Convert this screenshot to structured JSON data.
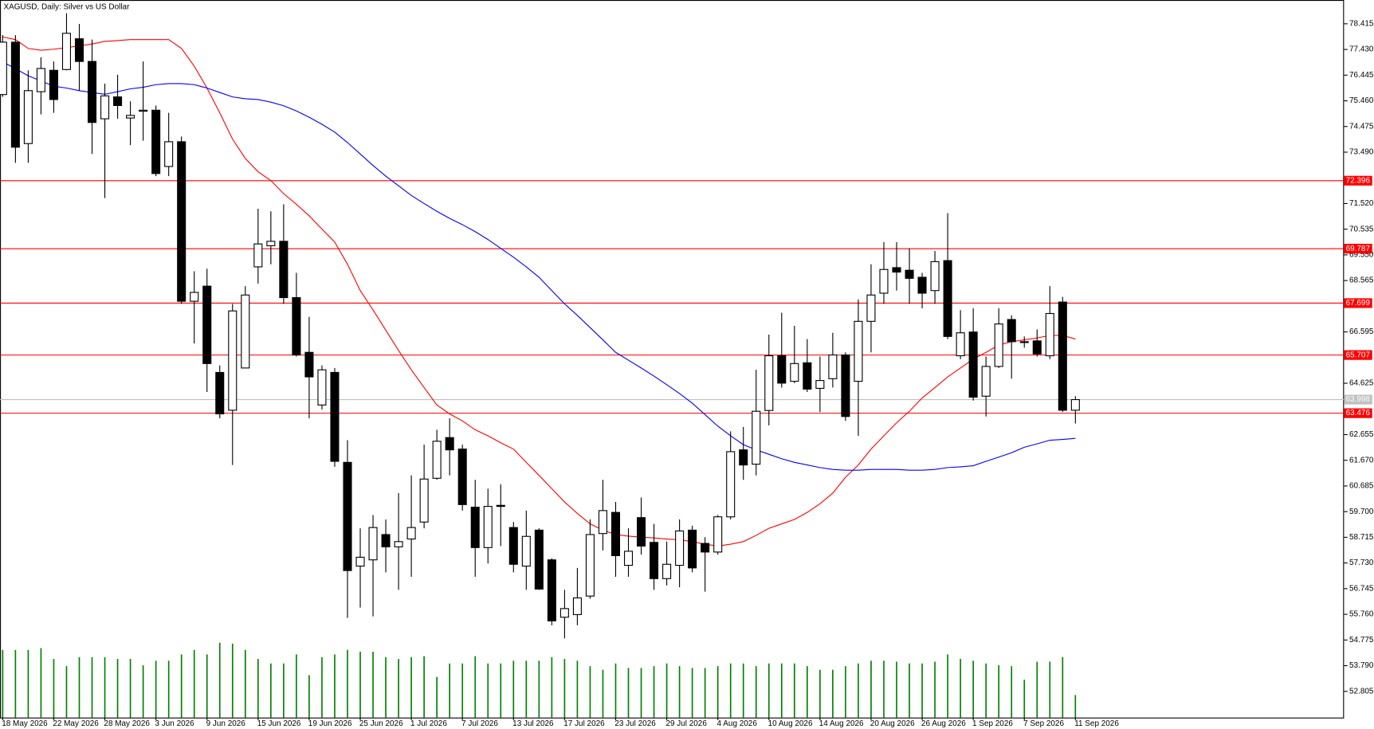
{
  "chart_data": {
    "type": "candlestick",
    "title": "XAGUSD, Daily:  Silver vs US Dollar",
    "categories": [
      "18 May 2026",
      null,
      null,
      null,
      "22 May 2026",
      null,
      null,
      null,
      "28 May 2026",
      null,
      null,
      null,
      "3 Jun 2026",
      null,
      null,
      null,
      "9 Jun 2026",
      null,
      null,
      null,
      "15 Jun 2026",
      null,
      null,
      null,
      "19 Jun 2026",
      null,
      null,
      null,
      "25 Jun 2026",
      null,
      null,
      null,
      "1 Jul 2026",
      null,
      null,
      null,
      "7 Jul 2026",
      null,
      null,
      null,
      "13 Jul 2026",
      null,
      null,
      null,
      "17 Jul 2026",
      null,
      null,
      null,
      "23 Jul 2026",
      null,
      null,
      null,
      "29 Jul 2026",
      null,
      null,
      null,
      "4 Aug 2026",
      null,
      null,
      null,
      "10 Aug 2026",
      null,
      null,
      null,
      "14 Aug 2026",
      null,
      null,
      null,
      "20 Aug 2026",
      null,
      null,
      null,
      "26 Aug 2026",
      null,
      null,
      null,
      "1 Sep 2026",
      null,
      null,
      null,
      "7 Sep 2026",
      null,
      null,
      null,
      "11 Sep 2026"
    ],
    "open": [
      75.7,
      77.71,
      73.82,
      75.81,
      76.63,
      76.66,
      77.84,
      76.97,
      74.77,
      75.61,
      74.8,
      75.06,
      75.1,
      72.94,
      73.89,
      67.77,
      68.35,
      65.04,
      63.59,
      65.21,
      69.09,
      69.9,
      70.07,
      67.91,
      65.81,
      63.79,
      65.04,
      61.59,
      57.61,
      57.85,
      58.82,
      58.35,
      58.65,
      59.3,
      60.98,
      62.54,
      62.1,
      59.87,
      58.32,
      59.94,
      59.09,
      57.61,
      58.99,
      57.85,
      55.65,
      55.75,
      56.46,
      58.86,
      59.67,
      57.64,
      59.47,
      58.52,
      57.13,
      57.64,
      58.99,
      58.48,
      58.15,
      59.5,
      62.07,
      61.52,
      63.58,
      65.68,
      64.7,
      65.41,
      64.43,
      64.8,
      65.71,
      64.7,
      67.0,
      68.08,
      69.06,
      68.96,
      68.69,
      68.18,
      69.33,
      65.68,
      66.59,
      64.13,
      65.27,
      67.07,
      66.22,
      66.25,
      65.68,
      67.74,
      63.59
    ],
    "high": [
      77.98,
      77.98,
      76.63,
      77.13,
      76.97,
      78.82,
      78.41,
      77.81,
      76.12,
      76.46,
      75.44,
      76.97,
      75.28,
      75.0,
      74.09,
      68.92,
      69.02,
      65.31,
      67.67,
      68.35,
      71.32,
      71.22,
      71.49,
      68.86,
      67.17,
      65.31,
      65.21,
      62.44,
      59.06,
      59.57,
      59.4,
      60.41,
      61.09,
      62.27,
      62.84,
      63.28,
      62.27,
      60.92,
      60.58,
      60.75,
      59.3,
      59.74,
      59.06,
      57.91,
      56.7,
      57.54,
      59.4,
      60.92,
      60.07,
      59.06,
      60.24,
      59.23,
      58.55,
      59.4,
      59.16,
      58.72,
      59.57,
      62.78,
      62.95,
      65.14,
      66.49,
      67.33,
      66.83,
      66.32,
      65.65,
      66.56,
      65.81,
      67.84,
      69.19,
      70.04,
      70.04,
      69.8,
      68.86,
      69.7,
      71.15,
      67.43,
      67.5,
      65.65,
      67.5,
      67.23,
      66.42,
      66.69,
      68.35,
      67.94,
      64.13
    ],
    "low": [
      75.61,
      73.08,
      73.08,
      74.94,
      75.0,
      76.63,
      75.85,
      73.42,
      71.73,
      74.77,
      73.76,
      73.93,
      72.57,
      72.57,
      67.67,
      66.15,
      64.29,
      63.28,
      61.49,
      65.21,
      68.45,
      69.19,
      67.67,
      65.65,
      63.28,
      63.62,
      61.42,
      55.62,
      56.02,
      55.68,
      57.37,
      56.7,
      57.2,
      59.06,
      60.92,
      61.09,
      59.74,
      57.2,
      57.71,
      58.38,
      57.37,
      56.7,
      56.7,
      55.34,
      54.84,
      55.34,
      56.36,
      58.21,
      57.2,
      57.2,
      58.05,
      56.7,
      56.87,
      56.8,
      57.37,
      56.63,
      58.05,
      59.4,
      60.92,
      61.09,
      63.01,
      64.46,
      64.63,
      64.29,
      63.52,
      64.46,
      63.18,
      62.61,
      65.81,
      67.67,
      68.18,
      67.67,
      67.5,
      67.67,
      66.32,
      65.55,
      63.96,
      63.35,
      65.21,
      64.8,
      65.99,
      65.65,
      65.55,
      63.52,
      63.08
    ],
    "close": [
      77.71,
      73.68,
      75.85,
      76.7,
      75.51,
      78.05,
      76.97,
      74.63,
      75.65,
      75.28,
      74.9,
      75.1,
      72.67,
      73.89,
      67.77,
      68.11,
      65.38,
      63.45,
      67.4,
      68.01,
      69.97,
      70.07,
      67.91,
      65.71,
      64.87,
      65.14,
      61.63,
      57.44,
      57.95,
      59.09,
      58.35,
      58.55,
      59.09,
      60.95,
      62.4,
      62.07,
      59.97,
      58.32,
      59.9,
      59.9,
      57.68,
      58.75,
      56.73,
      55.51,
      55.98,
      56.39,
      58.82,
      59.74,
      58.01,
      58.18,
      58.38,
      57.13,
      57.68,
      58.96,
      57.54,
      58.15,
      59.5,
      62.0,
      61.49,
      63.55,
      65.68,
      64.63,
      65.38,
      64.4,
      64.73,
      65.71,
      63.35,
      67.0,
      68.01,
      68.99,
      68.89,
      68.65,
      68.08,
      69.29,
      66.42,
      66.56,
      64.09,
      65.27,
      66.9,
      66.22,
      66.19,
      65.75,
      67.3,
      63.59,
      63.998
    ],
    "volume": [
      75,
      75,
      75,
      77,
      65,
      57,
      67,
      67,
      67,
      65,
      65,
      58,
      63,
      63,
      70,
      75,
      70,
      83,
      82,
      75,
      65,
      60,
      60,
      70,
      47,
      67,
      70,
      75,
      73,
      73,
      67,
      65,
      67,
      68,
      45,
      60,
      60,
      68,
      60,
      60,
      63,
      63,
      63,
      67,
      65,
      63,
      57,
      53,
      60,
      55,
      55,
      57,
      60,
      57,
      55,
      55,
      57,
      60,
      60,
      57,
      60,
      60,
      60,
      57,
      53,
      53,
      57,
      60,
      63,
      63,
      62,
      60,
      60,
      62,
      70,
      65,
      63,
      60,
      58,
      57,
      42,
      62,
      62,
      67,
      25
    ],
    "volume_color": "#008000",
    "ma_lines": [
      {
        "color": "#ff0000",
        "values": [
          77.91,
          77.81,
          77.47,
          77.4,
          77.44,
          77.5,
          77.57,
          77.64,
          77.74,
          77.77,
          77.81,
          77.81,
          77.81,
          77.81,
          77.47,
          76.79,
          75.95,
          75.0,
          73.99,
          73.25,
          72.74,
          72.4,
          71.9,
          71.49,
          71.05,
          70.54,
          70.04,
          69.19,
          68.18,
          67.44,
          66.66,
          65.88,
          65.14,
          64.46,
          63.79,
          63.45,
          63.18,
          62.84,
          62.61,
          62.34,
          62.1,
          61.59,
          61.09,
          60.58,
          60.07,
          59.63,
          59.23,
          58.99,
          58.82,
          58.76,
          58.72,
          58.69,
          58.65,
          58.62,
          58.55,
          58.45,
          58.38,
          58.45,
          58.55,
          58.79,
          59.06,
          59.23,
          59.4,
          59.67,
          60.0,
          60.41,
          61.02,
          61.49,
          62.1,
          62.61,
          63.11,
          63.55,
          64.06,
          64.46,
          64.87,
          65.21,
          65.55,
          65.81,
          66.09,
          66.22,
          66.29,
          66.36,
          66.46,
          66.46,
          66.32
        ]
      },
      {
        "color": "#0000ff",
        "values": [
          76.96,
          76.69,
          76.42,
          76.22,
          76.02,
          75.95,
          75.85,
          75.78,
          75.71,
          75.81,
          75.92,
          75.98,
          76.08,
          76.12,
          76.12,
          76.08,
          75.95,
          75.78,
          75.61,
          75.54,
          75.51,
          75.41,
          75.27,
          75.07,
          74.83,
          74.56,
          74.26,
          73.86,
          73.42,
          72.98,
          72.57,
          72.2,
          71.83,
          71.52,
          71.22,
          70.95,
          70.71,
          70.44,
          70.14,
          69.8,
          69.46,
          69.09,
          68.69,
          68.18,
          67.67,
          67.23,
          66.76,
          66.29,
          65.81,
          65.51,
          65.21,
          64.9,
          64.57,
          64.23,
          63.86,
          63.42,
          62.98,
          62.61,
          62.27,
          62.07,
          61.9,
          61.73,
          61.59,
          61.49,
          61.39,
          61.32,
          61.29,
          61.29,
          61.32,
          61.32,
          61.32,
          61.29,
          61.29,
          61.32,
          61.39,
          61.42,
          61.46,
          61.63,
          61.79,
          61.96,
          62.17,
          62.3,
          62.44,
          62.47,
          62.51
        ]
      }
    ],
    "levels": [
      72.396,
      69.787,
      67.699,
      65.707,
      63.476
    ],
    "level_color": "#ff0000",
    "bid": 63.998,
    "ylim": [
      51.8,
      79.26
    ],
    "yticks": [
      78.415,
      {
        "value": 77.43,
        "label": "77.430"
      },
      76.445,
      {
        "value": 75.46,
        "label": "75.460"
      },
      74.475,
      {
        "value": 73.49,
        "label": "73.490"
      },
      {
        "value": 71.52,
        "label": "71.520"
      },
      70.535,
      {
        "value": 69.55,
        "label": "69.550"
      },
      68.565,
      66.595,
      64.625,
      62.655,
      {
        "value": 61.67,
        "label": "61.670"
      },
      60.685,
      {
        "value": 59.7,
        "label": "59.700"
      },
      58.715,
      {
        "value": 57.73,
        "label": "57.730"
      },
      56.745,
      {
        "value": 55.76,
        "label": "55.760"
      },
      54.775,
      {
        "value": 53.79,
        "label": "53.790"
      },
      52.805
    ]
  }
}
